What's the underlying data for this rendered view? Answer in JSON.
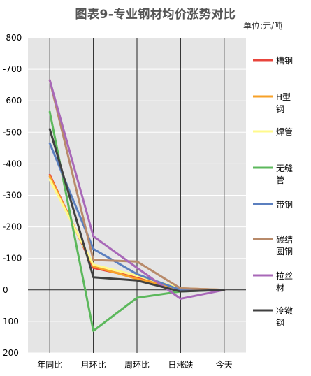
{
  "chart_data": {
    "type": "line",
    "title": "图表9-专业钢材均价涨势对比",
    "unit": "单位:元/吨",
    "categories": [
      "年同比",
      "月环比",
      "周环比",
      "日涨跌",
      "今天"
    ],
    "y_axis_inverted": true,
    "ylim": [
      200,
      -800
    ],
    "y_ticks": [
      "-800",
      "-700",
      "-600",
      "-500",
      "-400",
      "-300",
      "-200",
      "-100",
      "0",
      "100",
      "200"
    ],
    "grid": true,
    "legend_position": "right",
    "series": [
      {
        "name": "槽钢",
        "color": "#e8453c",
        "values": [
          -365,
          -70,
          -40,
          -5,
          0
        ]
      },
      {
        "name": "H型钢",
        "color": "#f7a128",
        "values": [
          -360,
          -75,
          -35,
          -3,
          0
        ]
      },
      {
        "name": "焊管",
        "color": "#fffa8c",
        "values": [
          -350,
          -80,
          -45,
          -5,
          0
        ]
      },
      {
        "name": "无缝管",
        "color": "#5cb85c",
        "values": [
          -565,
          130,
          25,
          5,
          0
        ]
      },
      {
        "name": "带钢",
        "color": "#5b7fbf",
        "values": [
          -465,
          -130,
          -50,
          0,
          0
        ]
      },
      {
        "name": "碳结圆钢",
        "color": "#b88a6a",
        "values": [
          -665,
          -95,
          -90,
          -5,
          0
        ]
      },
      {
        "name": "拉丝材",
        "color": "#a868b8",
        "values": [
          -665,
          -170,
          -70,
          28,
          0
        ]
      },
      {
        "name": "冷镦钢",
        "color": "#404040",
        "values": [
          -510,
          -40,
          -30,
          5,
          0
        ]
      }
    ]
  }
}
